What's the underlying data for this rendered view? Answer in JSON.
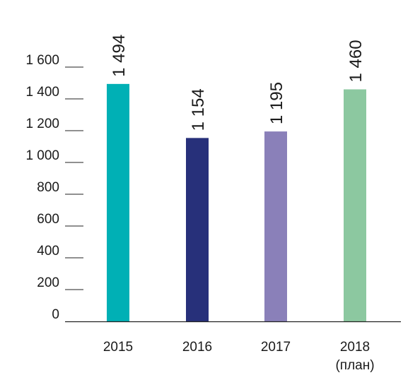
{
  "chart_data": {
    "type": "bar",
    "categories": [
      {
        "year": "2015",
        "note": ""
      },
      {
        "year": "2016",
        "note": ""
      },
      {
        "year": "2017",
        "note": ""
      },
      {
        "year": "2018",
        "note": "(план)"
      }
    ],
    "values": [
      1494,
      1154,
      1195,
      1460
    ],
    "value_labels": [
      "1 494",
      "1 154",
      "1 195",
      "1 460"
    ],
    "colors": [
      "#00B0B5",
      "#27307A",
      "#8A80B9",
      "#8CC8A0"
    ],
    "yticks": [
      {
        "value": 0,
        "label": "0"
      },
      {
        "value": 200,
        "label": "200"
      },
      {
        "value": 400,
        "label": "400"
      },
      {
        "value": 600,
        "label": "600"
      },
      {
        "value": 800,
        "label": "800"
      },
      {
        "value": 1000,
        "label": "1 000"
      },
      {
        "value": 1200,
        "label": "1 200"
      },
      {
        "value": 1400,
        "label": "1 400"
      },
      {
        "value": 1600,
        "label": "1 600"
      }
    ],
    "ylim": [
      0,
      1600
    ],
    "grid": false,
    "title": "",
    "xlabel": "",
    "ylabel": ""
  }
}
